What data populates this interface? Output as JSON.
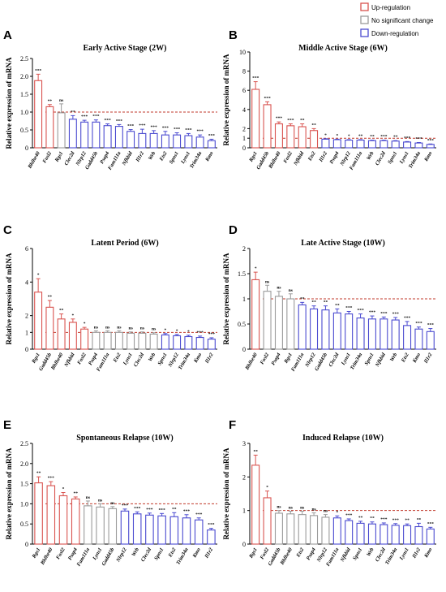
{
  "legend": {
    "items": [
      {
        "label": "Up-regulation",
        "color": "#d9534f"
      },
      {
        "label": "No significant change",
        "color": "#9a9a9a"
      },
      {
        "label": "Down-regulation",
        "color": "#4a4ad0"
      }
    ]
  },
  "y_axis_label": "Relative expression of mRNA",
  "reference_line": 1,
  "chart_data": [
    {
      "type": "bar",
      "letter": "A",
      "title": "Early Active Stage (2W)",
      "ylabel": "Relative expression of mRNA",
      "ylim": [
        0,
        2.5
      ],
      "yticks": [
        0,
        0.5,
        1.0,
        1.5,
        2.0,
        2.5
      ],
      "ytick_labels": [
        "0",
        "0.5",
        "1.0",
        "1.5",
        "2.0",
        "2.5"
      ],
      "categories": [
        "Bhlhe40",
        "Fosl2",
        "Rgs1",
        "Clec2d",
        "Nlrp12",
        "Gadd45b",
        "Psap4",
        "Fam111a",
        "Nfkbid",
        "Il1r2",
        "Wrb",
        "Ets2",
        "Spns1",
        "Lyns1",
        "Trim34a",
        "Kmo"
      ],
      "values": [
        1.88,
        1.15,
        0.98,
        0.8,
        0.72,
        0.72,
        0.62,
        0.6,
        0.46,
        0.4,
        0.4,
        0.36,
        0.36,
        0.34,
        0.3,
        0.2
      ],
      "errors": [
        0.18,
        0.06,
        0.25,
        0.1,
        0.05,
        0.06,
        0.05,
        0.05,
        0.05,
        0.12,
        0.08,
        0.1,
        0.06,
        0.06,
        0.06,
        0.04
      ],
      "status": [
        "up",
        "up",
        "ns",
        "down",
        "down",
        "down",
        "down",
        "down",
        "down",
        "down",
        "down",
        "down",
        "down",
        "down",
        "down",
        "down"
      ],
      "significance": [
        "***",
        "**",
        "ns",
        "**",
        "***",
        "***",
        "***",
        "***",
        "***",
        "***",
        "***",
        "***",
        "***",
        "***",
        "***",
        "***"
      ]
    },
    {
      "type": "bar",
      "letter": "B",
      "title": "Middle Active Stage (6W)",
      "ylabel": "Relative expression of mRNA",
      "ylim": [
        0,
        10
      ],
      "yticks": [
        0,
        1,
        2,
        4,
        6,
        8,
        10
      ],
      "ytick_labels": [
        "0",
        "1",
        "2",
        "4",
        "6",
        "8",
        "10"
      ],
      "categories": [
        "Rgs1",
        "Gadd45b",
        "Bhlhe40",
        "Fosl2",
        "Nfkbid",
        "Ets2",
        "Il1r2",
        "Psap4",
        "Nlrp12",
        "Fam111a",
        "Wrb",
        "Clec2d",
        "Spns1",
        "Lyns1",
        "Trim34a",
        "Kmo"
      ],
      "values": [
        6.1,
        4.5,
        2.5,
        2.3,
        2.2,
        1.8,
        0.9,
        0.85,
        0.8,
        0.8,
        0.75,
        0.75,
        0.7,
        0.6,
        0.5,
        0.35
      ],
      "errors": [
        0.8,
        0.3,
        0.2,
        0.2,
        0.3,
        0.2,
        0.05,
        0.05,
        0.05,
        0.05,
        0.05,
        0.05,
        0.05,
        0.05,
        0.05,
        0.05
      ],
      "status": [
        "up",
        "up",
        "up",
        "up",
        "up",
        "up",
        "down",
        "down",
        "down",
        "down",
        "down",
        "down",
        "down",
        "down",
        "down",
        "down"
      ],
      "significance": [
        "***",
        "***",
        "***",
        "***",
        "**",
        "**",
        "*",
        "*",
        "*",
        "**",
        "**",
        "***",
        "**",
        "***",
        "***",
        "***"
      ]
    },
    {
      "type": "bar",
      "letter": "C",
      "title": "Latent Period (6W)",
      "ylabel": "Relative expression of mRNA",
      "ylim": [
        0,
        6
      ],
      "yticks": [
        0,
        1,
        2,
        4,
        6
      ],
      "ytick_labels": [
        "0",
        "1",
        "2",
        "4",
        "6"
      ],
      "categories": [
        "Rgs1",
        "Gadd45b",
        "Bhlhe40",
        "Nfkbid",
        "Fosl2",
        "Psap4",
        "Fam111a",
        "Ets2",
        "Lyns1",
        "Clec2d",
        "Wrb",
        "Spns1",
        "Nlrp12",
        "Trim34a",
        "Kmo",
        "Il1r2"
      ],
      "values": [
        3.4,
        2.5,
        1.8,
        1.6,
        1.2,
        1.0,
        1.0,
        1.0,
        0.95,
        0.95,
        0.9,
        0.85,
        0.8,
        0.75,
        0.7,
        0.6
      ],
      "errors": [
        0.8,
        0.4,
        0.3,
        0.2,
        0.1,
        0.1,
        0.1,
        0.1,
        0.08,
        0.08,
        0.08,
        0.08,
        0.08,
        0.08,
        0.08,
        0.08
      ],
      "status": [
        "up",
        "up",
        "up",
        "up",
        "up",
        "ns",
        "ns",
        "ns",
        "ns",
        "ns",
        "ns",
        "down",
        "down",
        "down",
        "down",
        "down"
      ],
      "significance": [
        "*",
        "**",
        "**",
        "*",
        "*",
        "ns",
        "ns",
        "ns",
        "ns",
        "ns",
        "ns",
        "*",
        "*",
        "*",
        "***",
        "***"
      ]
    },
    {
      "type": "bar",
      "letter": "D",
      "title": "Late Active Stage (10W)",
      "ylabel": "Relative expression of mRNA",
      "ylim": [
        0,
        2
      ],
      "yticks": [
        0,
        0.5,
        1,
        1.5,
        2
      ],
      "ytick_labels": [
        "0",
        "0.5",
        "1",
        "1.5",
        "2"
      ],
      "categories": [
        "Bhlhe40",
        "Fosl2",
        "Psap4",
        "Rgs1",
        "Fam111a",
        "Nlrp12",
        "Gadd45b",
        "Clec2d",
        "Lyns1",
        "Trim34a",
        "Spns1",
        "Nfkbid",
        "Wrb",
        "Ets2",
        "Kmo",
        "Il1r2"
      ],
      "values": [
        1.38,
        1.15,
        1.05,
        1.0,
        0.88,
        0.8,
        0.78,
        0.72,
        0.7,
        0.62,
        0.6,
        0.6,
        0.58,
        0.47,
        0.4,
        0.35
      ],
      "errors": [
        0.15,
        0.12,
        0.1,
        0.1,
        0.05,
        0.06,
        0.08,
        0.08,
        0.05,
        0.08,
        0.06,
        0.04,
        0.05,
        0.08,
        0.04,
        0.06
      ],
      "status": [
        "up",
        "ns",
        "ns",
        "ns",
        "down",
        "down",
        "down",
        "down",
        "down",
        "down",
        "down",
        "down",
        "down",
        "down",
        "down",
        "down"
      ],
      "significance": [
        "*",
        "ns",
        "ns",
        "ns",
        "**",
        "**",
        "**",
        "**",
        "***",
        "***",
        "***",
        "***",
        "***",
        "***",
        "***",
        "***"
      ]
    },
    {
      "type": "bar",
      "letter": "E",
      "title": "Spontaneous Relapse (10W)",
      "ylabel": "Relative expression of mRNA",
      "ylim": [
        0,
        2.5
      ],
      "yticks": [
        0,
        0.5,
        1.0,
        1.5,
        2.0,
        2.5
      ],
      "ytick_labels": [
        "0",
        "0.5",
        "1.0",
        "1.5",
        "2.0",
        "2.5"
      ],
      "categories": [
        "Rgs1",
        "Bhlhe40",
        "Fosl2",
        "Psap4",
        "Fam111a",
        "Lyns1",
        "Gadd45b",
        "Nlrp12",
        "Wrb",
        "Clec2d",
        "Spns1",
        "Ets2",
        "Trim34a",
        "Kmo",
        "Il1r2"
      ],
      "values": [
        1.52,
        1.45,
        1.2,
        1.12,
        0.95,
        0.92,
        0.88,
        0.82,
        0.75,
        0.72,
        0.7,
        0.68,
        0.65,
        0.6,
        0.35
      ],
      "errors": [
        0.15,
        0.1,
        0.08,
        0.05,
        0.12,
        0.08,
        0.05,
        0.05,
        0.05,
        0.05,
        0.06,
        0.1,
        0.08,
        0.05,
        0.04
      ],
      "status": [
        "up",
        "up",
        "up",
        "up",
        "ns",
        "ns",
        "ns",
        "down",
        "down",
        "down",
        "down",
        "down",
        "down",
        "down",
        "down"
      ],
      "significance": [
        "**",
        "***",
        "*",
        "**",
        "ns",
        "ns",
        "ns",
        "***",
        "***",
        "***",
        "***",
        "**",
        "***",
        "***",
        "***"
      ]
    },
    {
      "type": "bar",
      "letter": "F",
      "title": "Induced Relapse (10W)",
      "ylabel": "Relative expression of mRNA",
      "ylim": [
        0,
        3
      ],
      "yticks": [
        0,
        1,
        2,
        3
      ],
      "ytick_labels": [
        "0",
        "1",
        "2",
        "3"
      ],
      "categories": [
        "Rgs1",
        "Fosl2",
        "Gadd45b",
        "Bhlhe40",
        "Ets2",
        "Psap4",
        "Nlrp12",
        "Fam111a",
        "Nfkbid",
        "Spns1",
        "Wrb",
        "Clec2d",
        "Trim34a",
        "Lyns1",
        "Il1r2",
        "Kmo"
      ],
      "values": [
        2.35,
        1.38,
        0.92,
        0.9,
        0.88,
        0.85,
        0.8,
        0.78,
        0.7,
        0.62,
        0.6,
        0.58,
        0.56,
        0.55,
        0.52,
        0.45
      ],
      "errors": [
        0.3,
        0.2,
        0.08,
        0.08,
        0.1,
        0.08,
        0.08,
        0.06,
        0.05,
        0.06,
        0.06,
        0.05,
        0.05,
        0.05,
        0.1,
        0.05
      ],
      "status": [
        "up",
        "up",
        "ns",
        "ns",
        "ns",
        "ns",
        "ns",
        "down",
        "down",
        "down",
        "down",
        "down",
        "down",
        "down",
        "down",
        "down"
      ],
      "significance": [
        "**",
        "*",
        "ns",
        "ns",
        "ns",
        "ns",
        "ns",
        "*",
        "***",
        "**",
        "**",
        "***",
        "***",
        "**",
        "**",
        "***"
      ]
    }
  ]
}
